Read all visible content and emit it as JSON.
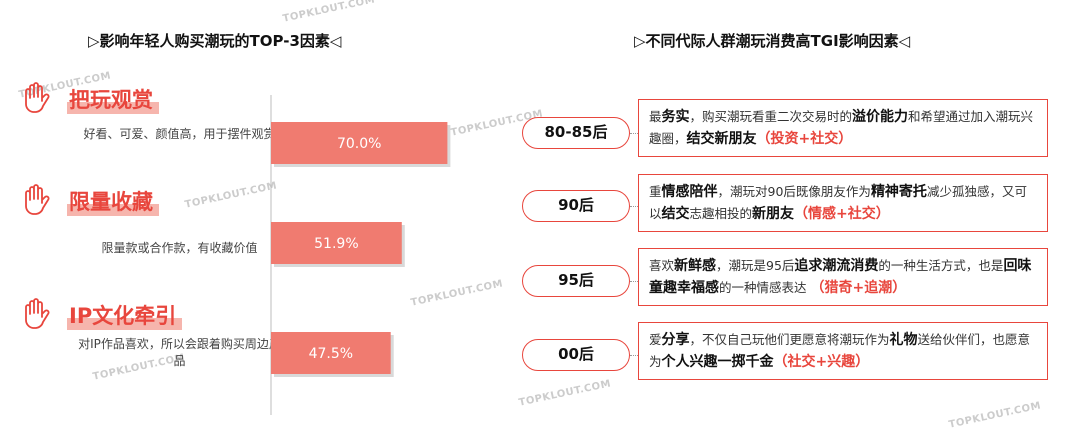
{
  "left_title": "▷影响年轻人购买潮玩的TOP-3因素◁",
  "right_title": "▷不同代际人群潮玩消费高TGI影响因素◁",
  "watermark": "TOPKLOUT.COM",
  "factors": [
    {
      "name": "把玩观赏",
      "desc": "好看、可爱、颜值高，用于摆件观赏"
    },
    {
      "name": "限量收藏",
      "desc": "限量款或合作款，有收藏价值"
    },
    {
      "name": "IP文化牵引",
      "desc": "对IP作品喜欢，所以会跟着购买周边产品"
    }
  ],
  "colors": {
    "accent": "#e8463d",
    "bar": "#f07b70",
    "bar_shadow": "#d9d9d9"
  },
  "chart_data": {
    "type": "bar",
    "orientation": "horizontal",
    "categories": [
      "把玩观赏",
      "限量收藏",
      "IP文化牵引"
    ],
    "values": [
      70.0,
      51.9,
      47.5
    ],
    "value_labels": [
      "70.0%",
      "51.9%",
      "47.5%"
    ],
    "xlim": [
      0,
      100
    ],
    "grid": false,
    "legend": "none",
    "title": "",
    "xlabel": "",
    "ylabel": ""
  },
  "generations": [
    {
      "label": "80-85后",
      "parts": [
        {
          "t": "最",
          "s": "n"
        },
        {
          "t": "务实",
          "s": "b"
        },
        {
          "t": "，购买潮玩看重二次交易时的",
          "s": "n"
        },
        {
          "t": "溢价能力",
          "s": "b"
        },
        {
          "t": "和希望通过加入潮玩兴趣圈，",
          "s": "n"
        },
        {
          "t": "结交新朋友",
          "s": "b"
        },
        {
          "t": "（投资+社交）",
          "s": "r"
        }
      ]
    },
    {
      "label": "90后",
      "parts": [
        {
          "t": "重",
          "s": "n"
        },
        {
          "t": "情感陪伴",
          "s": "b"
        },
        {
          "t": "，潮玩对90后既像朋友作为",
          "s": "n"
        },
        {
          "t": "精神寄托",
          "s": "b"
        },
        {
          "t": "减少孤独感，又可以",
          "s": "n"
        },
        {
          "t": "结交",
          "s": "b"
        },
        {
          "t": "志趣相投的",
          "s": "n"
        },
        {
          "t": "新朋友",
          "s": "b"
        },
        {
          "t": "（情感+社交）",
          "s": "r"
        }
      ]
    },
    {
      "label": "95后",
      "parts": [
        {
          "t": "喜欢",
          "s": "n"
        },
        {
          "t": "新鲜感",
          "s": "b"
        },
        {
          "t": "，潮玩是95后",
          "s": "n"
        },
        {
          "t": "追求潮流消费",
          "s": "b"
        },
        {
          "t": "的一种生活方式，也是",
          "s": "n"
        },
        {
          "t": "回味童趣幸福感",
          "s": "b"
        },
        {
          "t": "的一种情感表达 ",
          "s": "n"
        },
        {
          "t": "（猎奇+追潮）",
          "s": "r"
        }
      ]
    },
    {
      "label": "00后",
      "parts": [
        {
          "t": "爱",
          "s": "n"
        },
        {
          "t": "分享",
          "s": "b"
        },
        {
          "t": "，不仅自己玩他们更愿意将潮玩作为",
          "s": "n"
        },
        {
          "t": "礼物",
          "s": "b"
        },
        {
          "t": "送给伙伴们，也愿意为",
          "s": "n"
        },
        {
          "t": "个人兴趣一掷千金",
          "s": "b"
        },
        {
          "t": "（社交+兴趣）",
          "s": "r"
        }
      ]
    }
  ]
}
